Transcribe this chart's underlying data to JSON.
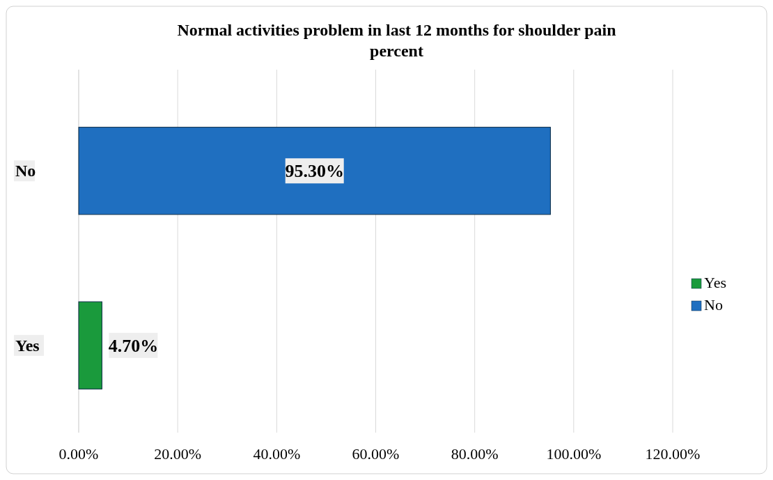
{
  "chart_data": {
    "type": "bar",
    "orientation": "horizontal",
    "title": "Normal activities problem in last 12 months for shoulder pain percent",
    "categories": [
      "No",
      "Yes"
    ],
    "series": [
      {
        "name": "Yes",
        "color": "#1a9a3c",
        "values": [
          null,
          4.7
        ],
        "value_labels": [
          null,
          "4.70%"
        ]
      },
      {
        "name": "No",
        "color": "#1f6fc0",
        "values": [
          95.3,
          null
        ],
        "value_labels": [
          "95.30%",
          null
        ]
      }
    ],
    "xlim": [
      0,
      120
    ],
    "xticks": [
      {
        "value": 0,
        "label": "0.00%"
      },
      {
        "value": 20,
        "label": "20.00%"
      },
      {
        "value": 40,
        "label": "40.00%"
      },
      {
        "value": 60,
        "label": "60.00%"
      },
      {
        "value": 80,
        "label": "80.00%"
      },
      {
        "value": 100,
        "label": "100.00%"
      },
      {
        "value": 120,
        "label": "120.00%"
      }
    ],
    "grid": "x",
    "legend": "right"
  }
}
